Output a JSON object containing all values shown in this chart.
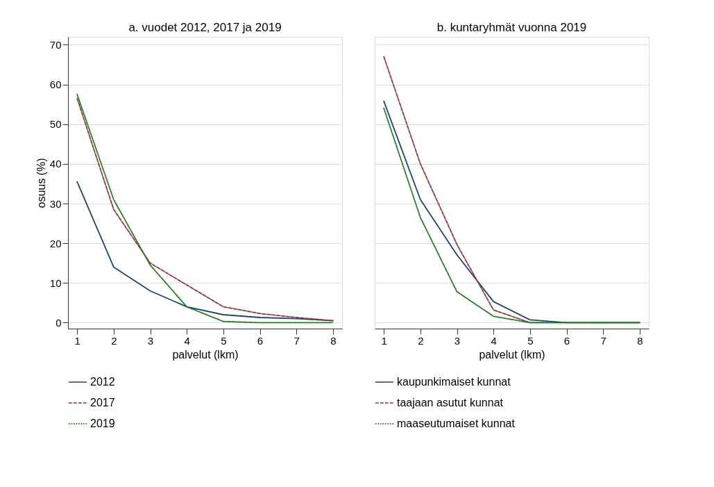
{
  "chart_data": [
    {
      "type": "line",
      "title": "a. vuodet 2012, 2017 ja 2019",
      "xlabel": "palvelut (lkm)",
      "ylabel": "osuus (%)",
      "x": [
        1,
        2,
        3,
        4,
        5,
        6,
        7,
        8
      ],
      "xlim": [
        0.75,
        8.25
      ],
      "xticks": [
        1,
        2,
        3,
        4,
        5,
        6,
        7,
        8
      ],
      "ylim": [
        -1.5,
        72
      ],
      "yticks": [
        0,
        10,
        20,
        30,
        40,
        50,
        60,
        70
      ],
      "grid": "y",
      "legend": "bottom",
      "series": [
        {
          "name": "2012",
          "color": "#1a476f",
          "line_style": "solid",
          "values": [
            35.5,
            14,
            8,
            4,
            2,
            1.3,
            1,
            0.5
          ]
        },
        {
          "name": "2017",
          "color": "#90353b",
          "line_style": "dashed",
          "values": [
            56.5,
            28.5,
            15,
            9.5,
            4,
            2.3,
            1.3,
            0.5
          ]
        },
        {
          "name": "2019",
          "color": "#1f7a1f",
          "line_style": "dotted",
          "values": [
            57.5,
            31,
            14.5,
            4,
            0.3,
            0,
            0,
            0
          ]
        }
      ]
    },
    {
      "type": "line",
      "title": "b. kuntaryhmät vuonna 2019",
      "xlabel": "palvelut (lkm)",
      "x": [
        1,
        2,
        3,
        4,
        5,
        6,
        7,
        8
      ],
      "xlim": [
        0.75,
        8.25
      ],
      "xticks": [
        1,
        2,
        3,
        4,
        5,
        6,
        7,
        8
      ],
      "ylim": [
        -1.5,
        72
      ],
      "yticks": [
        0,
        10,
        20,
        30,
        40,
        50,
        60,
        70
      ],
      "grid": "y",
      "legend": "bottom",
      "tick_labels": "x",
      "series": [
        {
          "name": "kaupunkimaiset kunnat",
          "color": "#1a476f",
          "line_style": "solid",
          "values": [
            55.8,
            31,
            17.1,
            5.3,
            0.7,
            0,
            0,
            0
          ]
        },
        {
          "name": "taajaan asutut kunnat",
          "color": "#90353b",
          "line_style": "dashed",
          "values": [
            67,
            40,
            19.7,
            3.2,
            0,
            0,
            0,
            0
          ]
        },
        {
          "name": "maaseutumaiset kunnat",
          "color": "#1f7a1f",
          "line_style": "dotted",
          "values": [
            54,
            26.5,
            7.8,
            1.6,
            0,
            0,
            0,
            0
          ]
        }
      ]
    }
  ]
}
